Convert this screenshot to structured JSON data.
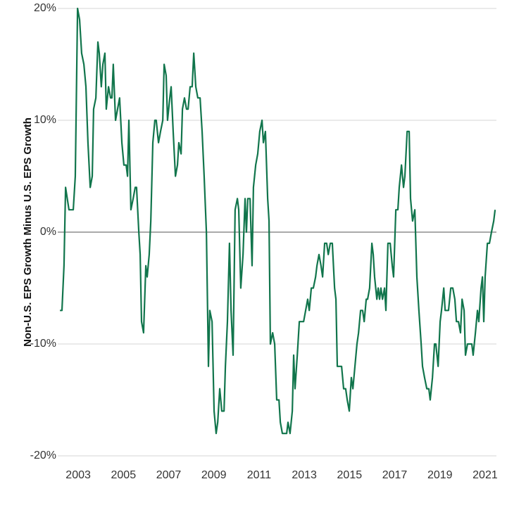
{
  "chart_data": {
    "type": "line",
    "y_label": "Non-U.S. EPS Growth Minus U.S. EPS Growth",
    "color": "#11754c",
    "grid": true,
    "xlim": [
      2002,
      2021.5
    ],
    "xticks": [
      2003,
      2005,
      2007,
      2009,
      2011,
      2013,
      2015,
      2017,
      2019,
      2021
    ],
    "ylim": [
      -20,
      20
    ],
    "yticks": [
      {
        "value": -20,
        "label": "-20%"
      },
      {
        "value": -10,
        "label": "-10%"
      },
      {
        "value": 0,
        "label": "0%"
      },
      {
        "value": 10,
        "label": "10%"
      },
      {
        "value": 20,
        "label": "20%"
      }
    ],
    "x": [
      2002.19,
      2002.28,
      2002.37,
      2002.44,
      2002.59,
      2002.78,
      2002.87,
      2002.97,
      2003.06,
      2003.15,
      2003.25,
      2003.34,
      2003.43,
      2003.53,
      2003.62,
      2003.68,
      2003.78,
      2003.87,
      2003.93,
      2004.02,
      2004.09,
      2004.18,
      2004.24,
      2004.34,
      2004.43,
      2004.49,
      2004.55,
      2004.65,
      2004.74,
      2004.83,
      2004.93,
      2005.02,
      2005.12,
      2005.18,
      2005.24,
      2005.33,
      2005.43,
      2005.52,
      2005.58,
      2005.68,
      2005.74,
      2005.8,
      2005.89,
      2005.99,
      2006.05,
      2006.14,
      2006.21,
      2006.3,
      2006.39,
      2006.45,
      2006.55,
      2006.64,
      2006.74,
      2006.8,
      2006.89,
      2006.95,
      2007.05,
      2007.11,
      2007.2,
      2007.3,
      2007.39,
      2007.45,
      2007.55,
      2007.61,
      2007.7,
      2007.79,
      2007.86,
      2007.95,
      2008.04,
      2008.11,
      2008.2,
      2008.29,
      2008.39,
      2008.48,
      2008.57,
      2008.67,
      2008.73,
      2008.76,
      2008.82,
      2008.92,
      2009.01,
      2009.1,
      2009.17,
      2009.26,
      2009.35,
      2009.45,
      2009.51,
      2009.6,
      2009.69,
      2009.76,
      2009.85,
      2009.94,
      2010.04,
      2010.1,
      2010.19,
      2010.29,
      2010.38,
      2010.44,
      2010.5,
      2010.6,
      2010.69,
      2010.75,
      2010.85,
      2010.94,
      2011.03,
      2011.13,
      2011.19,
      2011.28,
      2011.38,
      2011.44,
      2011.5,
      2011.6,
      2011.69,
      2011.78,
      2011.88,
      2011.94,
      2012.03,
      2012.12,
      2012.22,
      2012.28,
      2012.37,
      2012.47,
      2012.53,
      2012.59,
      2012.69,
      2012.78,
      2012.87,
      2012.97,
      2013.06,
      2013.15,
      2013.22,
      2013.31,
      2013.4,
      2013.5,
      2013.56,
      2013.65,
      2013.74,
      2013.81,
      2013.9,
      2013.99,
      2014.06,
      2014.15,
      2014.24,
      2014.34,
      2014.4,
      2014.46,
      2014.55,
      2014.65,
      2014.74,
      2014.83,
      2014.9,
      2014.99,
      2015.08,
      2015.15,
      2015.24,
      2015.33,
      2015.4,
      2015.49,
      2015.58,
      2015.65,
      2015.74,
      2015.8,
      2015.89,
      2015.99,
      2016.05,
      2016.11,
      2016.21,
      2016.27,
      2016.33,
      2016.39,
      2016.46,
      2016.55,
      2016.61,
      2016.7,
      2016.8,
      2016.89,
      2016.95,
      2017.05,
      2017.14,
      2017.2,
      2017.3,
      2017.39,
      2017.45,
      2017.55,
      2017.64,
      2017.7,
      2017.79,
      2017.89,
      2017.98,
      2018.07,
      2018.17,
      2018.23,
      2018.32,
      2018.42,
      2018.51,
      2018.57,
      2018.67,
      2018.76,
      2018.82,
      2018.92,
      2019.01,
      2019.07,
      2019.17,
      2019.23,
      2019.32,
      2019.38,
      2019.48,
      2019.57,
      2019.66,
      2019.73,
      2019.82,
      2019.91,
      2019.98,
      2020.07,
      2020.13,
      2020.22,
      2020.32,
      2020.41,
      2020.47,
      2020.57,
      2020.66,
      2020.72,
      2020.82,
      2020.88,
      2020.94,
      2021.0,
      2021.1,
      2021.19,
      2021.28,
      2021.38,
      2021.44
    ],
    "values": [
      -7,
      -7,
      -3,
      4,
      2,
      2,
      5,
      20,
      19,
      16,
      15,
      13,
      8,
      4,
      5,
      11,
      12,
      17,
      16,
      13,
      15,
      16,
      11,
      13,
      12,
      12,
      15,
      10,
      11,
      12,
      8,
      6,
      6,
      5,
      10,
      2,
      3,
      4,
      4,
      0,
      -2,
      -8,
      -9,
      -3,
      -4,
      -2,
      1,
      8,
      10,
      10,
      8,
      9,
      10,
      15,
      14,
      10,
      12,
      13,
      9,
      5,
      6,
      8,
      7,
      11,
      12,
      11,
      11,
      13,
      13,
      16,
      13,
      12,
      12,
      9,
      5,
      0,
      -8,
      -12,
      -7,
      -8,
      -16,
      -18,
      -17,
      -14,
      -16,
      -16,
      -12,
      -8,
      -1,
      -7,
      -11,
      2,
      3,
      2,
      -5,
      -2,
      3,
      0,
      3,
      3,
      -3,
      4,
      6,
      7,
      9,
      10,
      8,
      9,
      3,
      1,
      -10,
      -9,
      -10,
      -15,
      -15,
      -17,
      -18,
      -18,
      -18,
      -17,
      -18,
      -16,
      -11,
      -14,
      -11,
      -8,
      -8,
      -8,
      -7,
      -6,
      -7,
      -5,
      -5,
      -4,
      -3,
      -2,
      -3,
      -4,
      -1,
      -1,
      -2,
      -1,
      -1,
      -5,
      -6,
      -12,
      -12,
      -12,
      -14,
      -14,
      -15,
      -16,
      -13,
      -14,
      -12,
      -10,
      -9,
      -7,
      -7,
      -8,
      -6,
      -6,
      -5,
      -1,
      -2,
      -4,
      -6,
      -5,
      -6,
      -5,
      -6,
      -5,
      -7,
      -1,
      -1,
      -3,
      -4,
      2,
      2,
      4,
      6,
      4,
      5,
      9,
      9,
      3,
      1,
      2,
      -4,
      -7,
      -10,
      -12,
      -13,
      -14,
      -14,
      -15,
      -13,
      -10,
      -10,
      -12,
      -8,
      -7,
      -5,
      -7,
      -7,
      -7,
      -5,
      -5,
      -6,
      -8,
      -8,
      -9,
      -6,
      -7,
      -11,
      -10,
      -10,
      -10,
      -11,
      -9,
      -7,
      -8,
      -5,
      -4,
      -8,
      -4,
      -1,
      -1,
      0,
      1,
      2
    ]
  }
}
